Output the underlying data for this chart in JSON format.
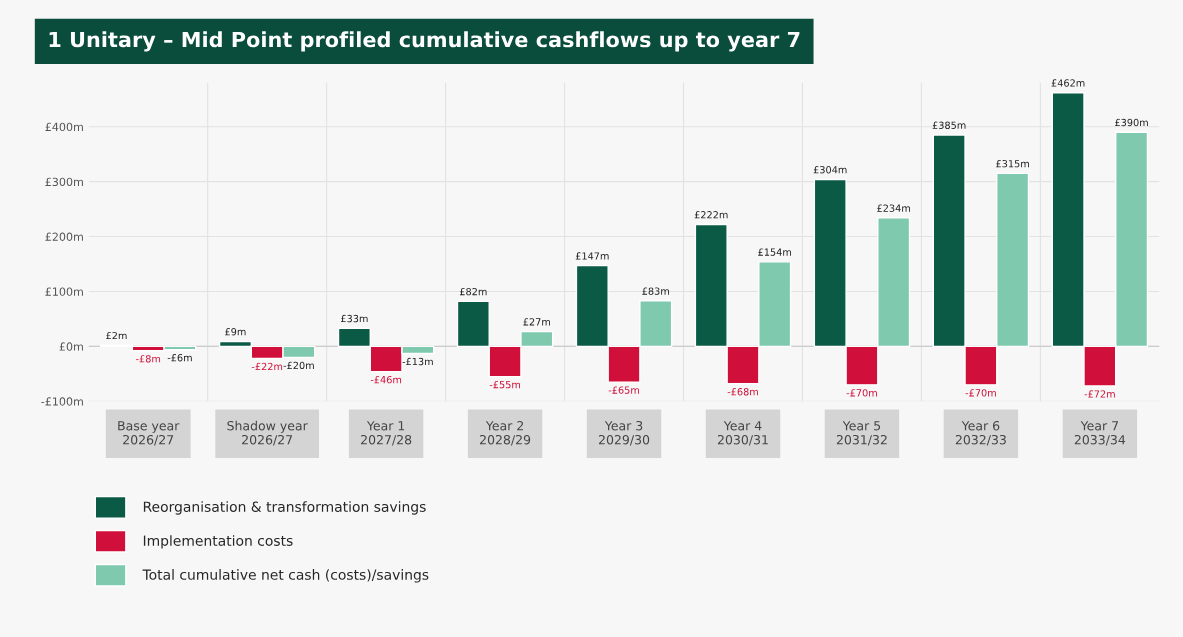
{
  "chart_data": {
    "type": "bar",
    "title": "1 Unitary – Mid Point profiled cumulative cashflows up to year 7",
    "categories": [
      "Base year\n2026/27",
      "Shadow year\n2026/27",
      "Year 1\n2027/28",
      "Year 2\n2028/29",
      "Year 3\n2029/30",
      "Year 4\n2030/31",
      "Year 5\n2031/32",
      "Year 6\n2032/33",
      "Year 7\n2033/34"
    ],
    "series": [
      {
        "name": "Reorganisation & transformation savings",
        "color": "#0b5a45",
        "values": [
          2,
          9,
          33,
          82,
          147,
          222,
          304,
          385,
          462
        ],
        "value_labels": [
          "£2m",
          "£9m",
          "£33m",
          "£82m",
          "£147m",
          "£222m",
          "£304m",
          "£385m",
          "£462m"
        ]
      },
      {
        "name": "Implementation costs",
        "color": "#d0103a",
        "values": [
          -8,
          -22,
          -46,
          -55,
          -65,
          -68,
          -70,
          -70,
          -72
        ],
        "value_labels": [
          "-£8m",
          "-£22m",
          "-£46m",
          "-£55m",
          "-£65m",
          "-£68m",
          "-£70m",
          "-£70m",
          "-£72m"
        ]
      },
      {
        "name": "Total cumulative net cash (costs)/savings",
        "color": "#7fc9ae",
        "values": [
          -6,
          -20,
          -13,
          27,
          83,
          154,
          234,
          315,
          390
        ],
        "value_labels": [
          "-£6m",
          "-£20m",
          "-£13m",
          "£27m",
          "£83m",
          "£154m",
          "£234m",
          "£315m",
          "£390m"
        ]
      }
    ],
    "ylim": [
      -100,
      480
    ],
    "yticks": [
      {
        "value": -100,
        "label": "-£100m"
      },
      {
        "value": 0,
        "label": "£0m"
      },
      {
        "value": 100,
        "label": "£100m"
      },
      {
        "value": 200,
        "label": "£200m"
      },
      {
        "value": 300,
        "label": "£300m"
      },
      {
        "value": 400,
        "label": "£400m"
      }
    ],
    "grid": "y",
    "legend": "bottom"
  }
}
